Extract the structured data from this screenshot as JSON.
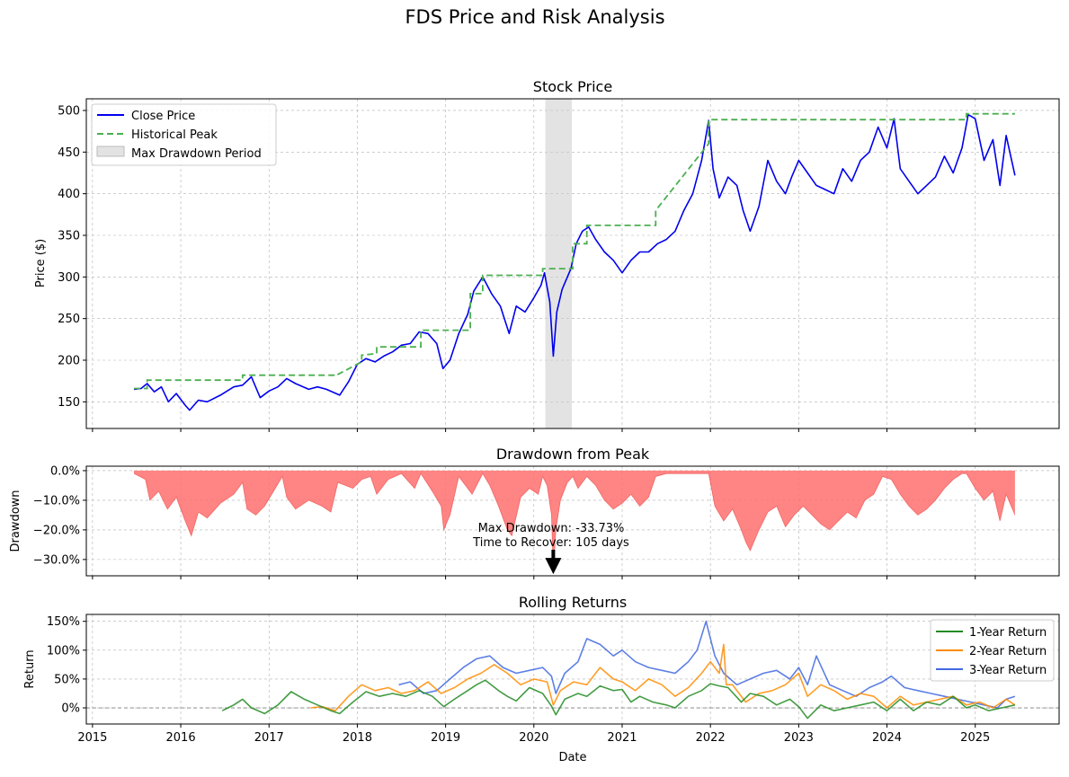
{
  "figure": {
    "title": "FDS Price and Risk Analysis"
  },
  "colors": {
    "price": "#0000ee",
    "peak": "#4caf50",
    "drawdown_fill": "#ff6f6f",
    "drawdown_edge": "#e53935",
    "shade": "#cccccc",
    "ret1": "#228b22",
    "ret2": "#ff8c00",
    "ret3": "#4169e1",
    "grid": "#b0b0b0",
    "zero_line": "#808080"
  },
  "chart_data": [
    {
      "id": "price",
      "type": "line",
      "title": "Stock Price",
      "xlabel": "",
      "ylabel": "Price ($)",
      "xlim": [
        2014.93,
        2025.95
      ],
      "ylim": [
        118,
        514
      ],
      "yticks": [
        150,
        200,
        250,
        300,
        350,
        400,
        450,
        500
      ],
      "grid": true,
      "legend": {
        "placement": "top-left",
        "entries": [
          "Close Price",
          "Historical Peak",
          "Max Drawdown Period"
        ]
      },
      "shaded_period": {
        "label": "Max Drawdown Period",
        "x": [
          2020.13,
          2020.43
        ]
      },
      "series": [
        {
          "name": "Close Price",
          "x": [
            2015.47,
            2015.55,
            2015.62,
            2015.7,
            2015.78,
            2015.86,
            2015.95,
            2016.05,
            2016.1,
            2016.2,
            2016.3,
            2016.45,
            2016.6,
            2016.7,
            2016.8,
            2016.9,
            2017.0,
            2017.1,
            2017.2,
            2017.3,
            2017.45,
            2017.55,
            2017.65,
            2017.8,
            2017.9,
            2018.0,
            2018.1,
            2018.2,
            2018.3,
            2018.4,
            2018.5,
            2018.6,
            2018.7,
            2018.8,
            2018.9,
            2018.97,
            2019.05,
            2019.15,
            2019.25,
            2019.32,
            2019.42,
            2019.52,
            2019.62,
            2019.72,
            2019.8,
            2019.9,
            2020.0,
            2020.08,
            2020.12,
            2020.18,
            2020.22,
            2020.26,
            2020.32,
            2020.38,
            2020.42,
            2020.48,
            2020.55,
            2020.62,
            2020.7,
            2020.8,
            2020.9,
            2021.0,
            2021.1,
            2021.2,
            2021.3,
            2021.4,
            2021.5,
            2021.6,
            2021.7,
            2021.8,
            2021.9,
            2021.98,
            2022.03,
            2022.1,
            2022.2,
            2022.3,
            2022.37,
            2022.45,
            2022.55,
            2022.65,
            2022.75,
            2022.85,
            2022.92,
            2023.0,
            2023.1,
            2023.2,
            2023.3,
            2023.4,
            2023.5,
            2023.6,
            2023.7,
            2023.8,
            2023.9,
            2024.0,
            2024.08,
            2024.15,
            2024.25,
            2024.35,
            2024.45,
            2024.55,
            2024.65,
            2024.75,
            2024.85,
            2024.92,
            2025.0,
            2025.1,
            2025.2,
            2025.28,
            2025.35,
            2025.45
          ],
          "values": [
            165,
            166,
            172,
            162,
            168,
            150,
            160,
            146,
            140,
            152,
            150,
            158,
            168,
            170,
            180,
            155,
            163,
            168,
            178,
            172,
            165,
            168,
            165,
            158,
            174,
            195,
            202,
            198,
            205,
            210,
            218,
            220,
            234,
            232,
            220,
            190,
            200,
            232,
            255,
            283,
            300,
            280,
            265,
            232,
            265,
            258,
            275,
            290,
            305,
            270,
            205,
            258,
            285,
            300,
            310,
            340,
            355,
            360,
            345,
            330,
            320,
            305,
            320,
            330,
            330,
            340,
            345,
            355,
            380,
            400,
            440,
            488,
            430,
            395,
            420,
            410,
            380,
            355,
            385,
            440,
            415,
            400,
            420,
            440,
            425,
            410,
            405,
            400,
            430,
            415,
            440,
            450,
            480,
            455,
            490,
            430,
            415,
            400,
            410,
            420,
            445,
            425,
            455,
            495,
            490,
            440,
            465,
            410,
            470,
            422
          ]
        },
        {
          "name": "Historical Peak",
          "x": [
            2015.47,
            2015.62,
            2015.62,
            2016.7,
            2016.7,
            2017.78,
            2017.78,
            2018.05,
            2018.05,
            2018.22,
            2018.22,
            2018.72,
            2018.72,
            2019.28,
            2019.28,
            2019.42,
            2019.42,
            2020.1,
            2020.1,
            2020.44,
            2020.44,
            2020.6,
            2020.6,
            2021.38,
            2021.38,
            2021.98,
            2021.98,
            2024.9,
            2024.9,
            2025.45
          ],
          "values": [
            166,
            166,
            176,
            176,
            182,
            182,
            183,
            198,
            206,
            208,
            216,
            216,
            236,
            236,
            280,
            280,
            302,
            302,
            310,
            310,
            340,
            340,
            362,
            362,
            380,
            460,
            489,
            489,
            496,
            496
          ]
        }
      ]
    },
    {
      "id": "drawdown",
      "type": "area",
      "title": "Drawdown from Peak",
      "xlabel": "",
      "ylabel": "Drawdown",
      "xlim": [
        2014.93,
        2025.95
      ],
      "ylim": [
        -35.5,
        1.5
      ],
      "yticks": [
        0,
        -10,
        -20,
        -30
      ],
      "ytick_labels": [
        "0.0%",
        "−10.0%",
        "−20.0%",
        "−30.0%"
      ],
      "grid": true,
      "annotation": {
        "lines": [
          "Max Drawdown: -33.73%",
          "Time to Recover: 105 days"
        ],
        "arrow_to": [
          2020.22,
          -33.73
        ]
      },
      "series": [
        {
          "name": "Drawdown",
          "x": [
            2015.47,
            2015.6,
            2015.65,
            2015.75,
            2015.85,
            2015.95,
            2016.05,
            2016.12,
            2016.2,
            2016.3,
            2016.45,
            2016.6,
            2016.7,
            2016.75,
            2016.85,
            2016.95,
            2017.05,
            2017.15,
            2017.2,
            2017.3,
            2017.45,
            2017.6,
            2017.7,
            2017.78,
            2017.95,
            2018.05,
            2018.15,
            2018.22,
            2018.35,
            2018.5,
            2018.65,
            2018.72,
            2018.85,
            2018.95,
            2018.98,
            2019.05,
            2019.15,
            2019.3,
            2019.42,
            2019.5,
            2019.6,
            2019.7,
            2019.75,
            2019.85,
            2019.95,
            2020.05,
            2020.1,
            2020.15,
            2020.2,
            2020.22,
            2020.25,
            2020.3,
            2020.38,
            2020.44,
            2020.5,
            2020.6,
            2020.7,
            2020.8,
            2020.9,
            2021.0,
            2021.1,
            2021.2,
            2021.3,
            2021.38,
            2021.5,
            2021.7,
            2021.98,
            2022.05,
            2022.15,
            2022.25,
            2022.35,
            2022.4,
            2022.45,
            2022.55,
            2022.65,
            2022.75,
            2022.85,
            2022.95,
            2023.05,
            2023.15,
            2023.25,
            2023.35,
            2023.45,
            2023.55,
            2023.65,
            2023.75,
            2023.85,
            2023.95,
            2024.05,
            2024.15,
            2024.25,
            2024.35,
            2024.45,
            2024.55,
            2024.65,
            2024.75,
            2024.85,
            2024.9,
            2025.0,
            2025.1,
            2025.2,
            2025.28,
            2025.35,
            2025.45
          ],
          "values": [
            -1,
            -3,
            -10,
            -7,
            -13,
            -9,
            -17,
            -22,
            -14,
            -16,
            -11,
            -8,
            -4,
            -13,
            -15,
            -12,
            -7,
            -2,
            -9,
            -13,
            -10,
            -12,
            -14,
            -4,
            -6,
            -3,
            -2,
            -8,
            -3,
            -1,
            -6,
            -1,
            -7,
            -12,
            -20,
            -15,
            -2,
            -8,
            -1,
            -5,
            -12,
            -20,
            -22,
            -9,
            -6,
            -8,
            -2,
            -5,
            -15,
            -33.7,
            -20,
            -10,
            -4,
            -2,
            -6,
            -2,
            -5,
            -10,
            -13,
            -11,
            -8,
            -12,
            -9,
            -2,
            -1,
            -1,
            -1,
            -12,
            -17,
            -13,
            -20,
            -24,
            -27,
            -20,
            -14,
            -12,
            -19,
            -15,
            -12,
            -15,
            -18,
            -20,
            -17,
            -14,
            -16,
            -10,
            -8,
            -2,
            -3,
            -8,
            -12,
            -15,
            -13,
            -10,
            -6,
            -3,
            -1,
            -1,
            -6,
            -10,
            -7,
            -17,
            -8,
            -15
          ]
        }
      ]
    },
    {
      "id": "returns",
      "type": "line",
      "title": "Rolling Returns",
      "xlabel": "Date",
      "ylabel": "Return",
      "xlim": [
        2014.93,
        2025.95
      ],
      "ylim": [
        -28,
        162
      ],
      "yticks": [
        0,
        50,
        100,
        150
      ],
      "ytick_labels": [
        "0%",
        "50%",
        "100%",
        "150%"
      ],
      "xticks": [
        2015,
        2016,
        2017,
        2018,
        2019,
        2020,
        2021,
        2022,
        2023,
        2024,
        2025
      ],
      "xtick_labels": [
        "2015",
        "2016",
        "2017",
        "2018",
        "2019",
        "2020",
        "2021",
        "2022",
        "2023",
        "2024",
        "2025"
      ],
      "grid": true,
      "legend": {
        "placement": "top-right",
        "entries": [
          "1-Year Return",
          "2-Year Return",
          "3-Year Return"
        ]
      },
      "series": [
        {
          "name": "1-Year Return",
          "x": [
            2016.47,
            2016.6,
            2016.7,
            2016.8,
            2016.95,
            2017.1,
            2017.25,
            2017.4,
            2017.55,
            2017.7,
            2017.8,
            2017.95,
            2018.1,
            2018.25,
            2018.4,
            2018.55,
            2018.7,
            2018.85,
            2018.98,
            2019.1,
            2019.25,
            2019.35,
            2019.45,
            2019.6,
            2019.7,
            2019.8,
            2019.95,
            2020.1,
            2020.2,
            2020.25,
            2020.35,
            2020.5,
            2020.6,
            2020.75,
            2020.9,
            2021.0,
            2021.1,
            2021.2,
            2021.35,
            2021.5,
            2021.6,
            2021.75,
            2021.9,
            2022.0,
            2022.1,
            2022.2,
            2022.35,
            2022.45,
            2022.6,
            2022.75,
            2022.9,
            2023.0,
            2023.1,
            2023.25,
            2023.4,
            2023.55,
            2023.7,
            2023.85,
            2024.0,
            2024.15,
            2024.3,
            2024.45,
            2024.6,
            2024.75,
            2024.9,
            2025.0,
            2025.15,
            2025.3,
            2025.45
          ],
          "values": [
            -5,
            5,
            15,
            0,
            -10,
            5,
            28,
            15,
            5,
            -5,
            -10,
            10,
            28,
            20,
            25,
            20,
            30,
            20,
            2,
            15,
            30,
            40,
            48,
            30,
            20,
            12,
            35,
            25,
            3,
            -12,
            15,
            25,
            20,
            38,
            30,
            32,
            10,
            20,
            10,
            5,
            0,
            20,
            30,
            42,
            38,
            35,
            10,
            25,
            20,
            5,
            15,
            2,
            -18,
            5,
            -5,
            0,
            5,
            10,
            -5,
            15,
            -5,
            10,
            5,
            20,
            0,
            5,
            -5,
            0,
            5
          ]
        },
        {
          "name": "2-Year Return",
          "x": [
            2017.47,
            2017.6,
            2017.75,
            2017.9,
            2018.05,
            2018.2,
            2018.35,
            2018.5,
            2018.65,
            2018.8,
            2018.95,
            2019.1,
            2019.25,
            2019.4,
            2019.55,
            2019.7,
            2019.85,
            2020.0,
            2020.15,
            2020.22,
            2020.3,
            2020.45,
            2020.6,
            2020.75,
            2020.9,
            2021.0,
            2021.15,
            2021.3,
            2021.45,
            2021.6,
            2021.75,
            2021.9,
            2022.0,
            2022.1,
            2022.15,
            2022.18,
            2022.25,
            2022.4,
            2022.55,
            2022.7,
            2022.85,
            2023.0,
            2023.1,
            2023.25,
            2023.4,
            2023.55,
            2023.7,
            2023.85,
            2024.0,
            2024.15,
            2024.3,
            2024.45,
            2024.6,
            2024.75,
            2024.9,
            2025.05,
            2025.2,
            2025.35,
            2025.45
          ],
          "values": [
            0,
            2,
            -5,
            20,
            40,
            30,
            35,
            25,
            30,
            45,
            25,
            35,
            50,
            60,
            75,
            60,
            40,
            50,
            45,
            5,
            30,
            45,
            40,
            70,
            50,
            45,
            30,
            50,
            40,
            20,
            35,
            60,
            80,
            60,
            110,
            40,
            40,
            10,
            25,
            30,
            40,
            60,
            20,
            40,
            30,
            15,
            25,
            20,
            0,
            20,
            5,
            10,
            15,
            20,
            5,
            10,
            0,
            15,
            5
          ]
        },
        {
          "name": "3-Year Return",
          "x": [
            2018.47,
            2018.6,
            2018.75,
            2018.9,
            2019.05,
            2019.2,
            2019.35,
            2019.5,
            2019.65,
            2019.8,
            2019.95,
            2020.1,
            2020.2,
            2020.25,
            2020.35,
            2020.5,
            2020.6,
            2020.75,
            2020.9,
            2021.0,
            2021.15,
            2021.3,
            2021.45,
            2021.6,
            2021.75,
            2021.85,
            2021.95,
            2022.05,
            2022.15,
            2022.3,
            2022.45,
            2022.6,
            2022.75,
            2022.9,
            2023.0,
            2023.1,
            2023.2,
            2023.35,
            2023.5,
            2023.65,
            2023.8,
            2023.95,
            2024.05,
            2024.2,
            2024.35,
            2024.5,
            2024.65,
            2024.8,
            2024.95,
            2025.1,
            2025.25,
            2025.35,
            2025.45
          ],
          "values": [
            40,
            45,
            25,
            30,
            50,
            70,
            85,
            90,
            70,
            60,
            65,
            70,
            55,
            25,
            60,
            80,
            120,
            110,
            90,
            100,
            80,
            70,
            65,
            60,
            80,
            100,
            150,
            90,
            60,
            40,
            50,
            60,
            65,
            50,
            70,
            40,
            90,
            40,
            30,
            20,
            35,
            45,
            55,
            35,
            30,
            25,
            20,
            15,
            10,
            5,
            0,
            15,
            20
          ]
        }
      ]
    }
  ]
}
